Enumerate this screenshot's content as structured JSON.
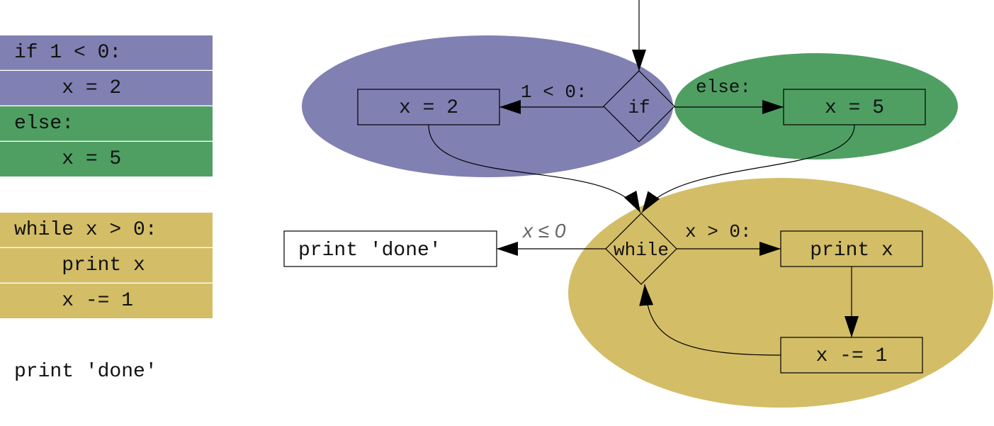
{
  "colors": {
    "if_block": "#8180b2",
    "else_block": "#4f9f63",
    "while_block": "#d3bd67"
  },
  "code": {
    "lines": [
      {
        "text": "if 1 < 0:",
        "group": "if"
      },
      {
        "text": "    x = 2",
        "group": "if"
      },
      {
        "text": "else:",
        "group": "else"
      },
      {
        "text": "    x = 5",
        "group": "else"
      },
      {
        "text": "while x > 0:",
        "group": "while"
      },
      {
        "text": "    print x",
        "group": "while"
      },
      {
        "text": "    x -= 1",
        "group": "while"
      },
      {
        "text": "print 'done'",
        "group": "none"
      }
    ]
  },
  "graph": {
    "nodes": {
      "if_decision": "if",
      "assign_x2": "x = 2",
      "assign_x5": "x = 5",
      "while_decision": "while",
      "print_x": "print x",
      "decrement_x": "x -= 1",
      "print_done": "print 'done'"
    },
    "edge_labels": {
      "if_true": "1 < 0:",
      "if_false": "else:",
      "while_true": "x > 0:",
      "while_false": "x ≤ 0"
    }
  }
}
